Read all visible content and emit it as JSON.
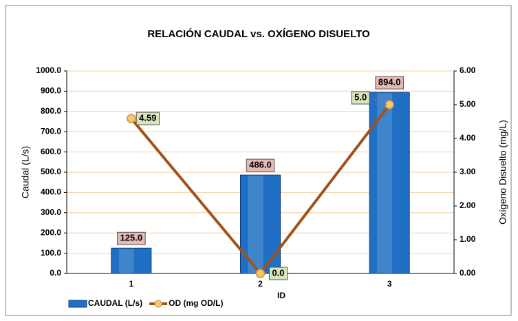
{
  "chart_data": {
    "type": "bar",
    "title": "RELACIÓN CAUDAL vs. OXÍGENO DISUELTO",
    "x_label": "ID",
    "y_label": "Caudal (L/s)",
    "y2_label": "Oxígeno Disuelto (mg/L)",
    "categories": [
      "1",
      "2",
      "3"
    ],
    "series": [
      {
        "name": "CAUDAL (L/s)",
        "type": "bar",
        "color": "#1f6fc4",
        "values": [
          125.0,
          486.0,
          894.0
        ],
        "value_labels": [
          "125.0",
          "486.0",
          "894.0"
        ]
      },
      {
        "name": "OD (mg OD/L)",
        "type": "line",
        "axis": "y2",
        "color": "#a0521b",
        "values": [
          4.59,
          0.0,
          5.0
        ],
        "value_labels": [
          "4.59",
          "0.0",
          "5.0"
        ]
      }
    ],
    "ylim": [
      0,
      1000
    ],
    "yticks": [
      {
        "value": 0,
        "label": "0.0"
      },
      {
        "value": 100,
        "label": "100.0"
      },
      {
        "value": 200,
        "label": "200.0"
      },
      {
        "value": 300,
        "label": "300.0"
      },
      {
        "value": 400,
        "label": "400.0"
      },
      {
        "value": 500,
        "label": "500.0"
      },
      {
        "value": 600,
        "label": "600.0"
      },
      {
        "value": 700,
        "label": "700.0"
      },
      {
        "value": 800,
        "label": "800.0"
      },
      {
        "value": 900,
        "label": "900.0"
      },
      {
        "value": 1000,
        "label": "1000.0"
      }
    ],
    "y2lim": [
      0,
      6
    ],
    "y2ticks": [
      {
        "value": 0,
        "label": "0.00"
      },
      {
        "value": 1,
        "label": "1.00"
      },
      {
        "value": 2,
        "label": "2.00"
      },
      {
        "value": 3,
        "label": "3.00"
      },
      {
        "value": 4,
        "label": "4.00"
      },
      {
        "value": 5,
        "label": "5.00"
      },
      {
        "value": 6,
        "label": "6.00"
      }
    ],
    "grid": true,
    "legend": "bottom-left"
  }
}
